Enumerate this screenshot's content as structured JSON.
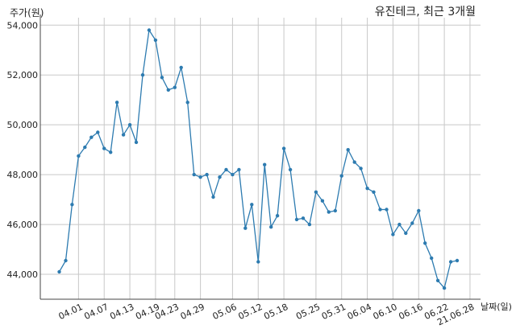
{
  "chart_data": {
    "type": "line",
    "title": "유진테크, 최근 3개월",
    "ylabel": "주가(원)",
    "xlabel": "날짜(일)",
    "ylim": [
      43000,
      54300
    ],
    "yticks": [
      44000,
      46000,
      48000,
      50000,
      52000,
      54000
    ],
    "ytick_labels": [
      "44,000",
      "46,000",
      "48,000",
      "50,000",
      "52,000",
      "54,000"
    ],
    "xtick_labels": [
      "04.01",
      "04.07",
      "04.13",
      "04.19",
      "04.23",
      "04.29",
      "05.06",
      "05.12",
      "05.18",
      "05.25",
      "05.31",
      "06.04",
      "06.10",
      "06.16",
      "06.22",
      "21.06.28"
    ],
    "xtick_index": [
      3,
      7,
      11,
      15,
      18,
      22,
      27,
      31,
      35,
      40,
      44,
      48,
      52,
      56,
      60,
      64
    ],
    "grid": true,
    "color": "#2d7bb0",
    "values": [
      44100,
      44550,
      46800,
      48750,
      49100,
      49500,
      49700,
      49050,
      48900,
      50900,
      49600,
      50000,
      49300,
      52000,
      53800,
      53400,
      51900,
      51400,
      51500,
      52300,
      50900,
      48000,
      47900,
      48000,
      47100,
      47900,
      48200,
      48000,
      48200,
      45850,
      46800,
      44500,
      48400,
      45900,
      46350,
      49050,
      48200,
      46200,
      46250,
      46000,
      47300,
      46950,
      46500,
      46550,
      47950,
      49000,
      48500,
      48250,
      47450,
      47300,
      46600,
      46600,
      45600,
      46000,
      45650,
      46050,
      46550,
      45250,
      44650,
      43750,
      43450,
      44500,
      44550
    ]
  }
}
